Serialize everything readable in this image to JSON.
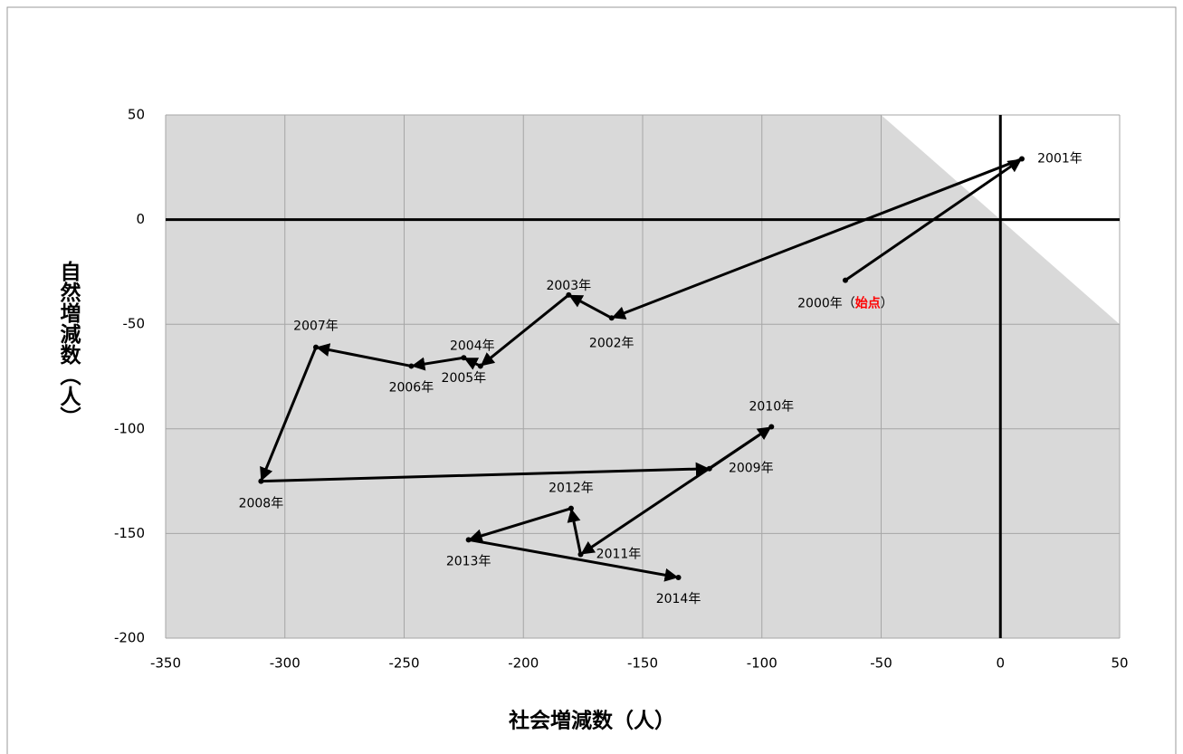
{
  "chart_data": {
    "type": "scatter",
    "x_label": "社会増減数（人）",
    "y_label": "自然増減数（人）",
    "xlim": [
      -350,
      50
    ],
    "xticks": [
      -350,
      -300,
      -250,
      -200,
      -150,
      -100,
      -50,
      0,
      50
    ],
    "ylim": [
      -200,
      50
    ],
    "yticks": [
      -200,
      -150,
      -100,
      -50,
      0,
      50
    ],
    "grid": true,
    "negative_tick_color": "#ff0000",
    "series": [
      {
        "color": "#000000",
        "x": [
          -65,
          9,
          -163,
          -181,
          -218,
          -225,
          -247,
          -287,
          -310,
          -122,
          -96,
          -176,
          -180,
          -223,
          -135
        ],
        "values": [
          -29,
          29,
          -47,
          -36,
          -70,
          -66,
          -70,
          -61,
          -125,
          -119,
          -99,
          -160,
          -138,
          -153,
          -171
        ],
        "labels": [
          "2000年",
          "2001年",
          "2002年",
          "2003年",
          "2004年",
          "2005年",
          "2006年",
          "2007年",
          "2008年",
          "2009年",
          "2010年",
          "2011年",
          "2012年",
          "2013年",
          "2014年"
        ]
      }
    ],
    "start_annotation": {
      "open": "（",
      "text": "始点",
      "close": "）",
      "color": "#ff0000"
    }
  }
}
